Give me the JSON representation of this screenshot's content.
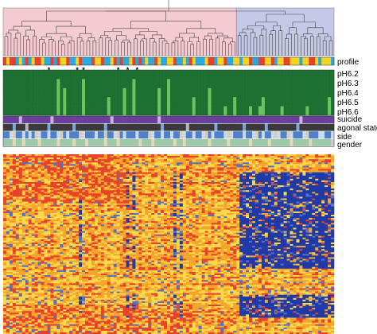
{
  "chart_data": {
    "type": "heatmap",
    "n_samples": 105,
    "dendrogram": {
      "clusters": [
        {
          "color": "#f4cbd3",
          "samples": [
            0,
            73
          ]
        },
        {
          "color": "#c5c8e6",
          "samples": [
            74,
            104
          ]
        }
      ]
    },
    "profile": {
      "label": "profile",
      "palette": {
        "r": "#e8402a",
        "y": "#f5d21f",
        "b": "#2aa9de",
        "o": "#f08a24"
      },
      "sequence": "ryrrbybrbyrrybbrbryyrbbyrbbbryyrbbyrbrbbyrbrbybbrybbyyrbbybrybbbyrrbyyrbbyybyyrbbrryyrbyyrryyybyyrrybyyyb"
    },
    "stars": {
      "symbol": "*",
      "samples": [
        14,
        23,
        25,
        36,
        39,
        42
      ]
    },
    "ph_tracks": {
      "labels": [
        "pH6.2",
        "pH6.3",
        "pH6.4",
        "pH6.5",
        "pH6.6"
      ],
      "colors": {
        "dark": "#1d7032",
        "light": "#6cc45e"
      },
      "light_rows": [
        0,
        0,
        0,
        0,
        0,
        0,
        0,
        0,
        0,
        0,
        0,
        0,
        0,
        0,
        0,
        0,
        0,
        4,
        0,
        3,
        0,
        0,
        0,
        0,
        0,
        4,
        0,
        0,
        0,
        0,
        0,
        0,
        0,
        2,
        0,
        0,
        0,
        0,
        3,
        0,
        0,
        4,
        0,
        0,
        0,
        0,
        0,
        0,
        0,
        3,
        0,
        0,
        4,
        0,
        0,
        0,
        0,
        0,
        0,
        0,
        2,
        0,
        0,
        0,
        0,
        3,
        0,
        0,
        0,
        0,
        1,
        0,
        0,
        2,
        0,
        0,
        0,
        0,
        1,
        0,
        0,
        1,
        2,
        0,
        0,
        0,
        0,
        0,
        1,
        0,
        0,
        0,
        0,
        0,
        0,
        0,
        1,
        0,
        0,
        0,
        0,
        0,
        0,
        2,
        0
      ]
    },
    "annotation_tracks": [
      {
        "label": "suicide",
        "palette": {
          "a": "#6b3fa0",
          "b": "#c9b3df"
        },
        "sequence": "aaaaabaaaaaaaaabaaaaaaaaaaaaaaaaaabaaaaaaaaaaaaaabaaaaaaaaaaaaaaaaaaaaaaaaaaaaaaaaaaaaaaaaaaaabaaaaaaaaaa"
      },
      {
        "label": "agonal state",
        "palette": {
          "a": "#3a3a3a",
          "b": "#7da9d8",
          "c": "#b7b7b7"
        },
        "sequence": "aaabaaacaaaaaabaaaaaaabaaaaaaaaabaaaaaaaaaaaaaaaaabaaaaaaacaaaaaaaabaaaaaaaabaaaaaabaaaaaaaaabaaaaaaaaaaa"
      },
      {
        "label": "side",
        "palette": {
          "a": "#4f80c8",
          "b": "#c9d9ef",
          "c": "#d7cfb5"
        },
        "sequence": "aabcaababacbaabaabcabaaacbaaabaacaabcabaaabaaacbaabaabaacbaabaabcabaaabcbaaabaabcabaabcbaacbaaabcaaabbaab"
      },
      {
        "label": "gender",
        "palette": {
          "a": "#9cc9a7",
          "b": "#e4d7b4"
        },
        "sequence": "aaabaabaaaabaaaaabaaaabaaabaaaaabaaabaaaaaabaaabaaaaaabaabaaaaaaabaaaaabaaaaaabaaaaabaaaaaabaaaaabaaaaaa"
      }
    ],
    "heatmap": {
      "n_genes": 110,
      "colorscale": [
        "#1f3aa8",
        "#5a6fc0",
        "#f7d94a",
        "#f4a52c",
        "#e7422b"
      ],
      "blue_columns": [
        24,
        39,
        41,
        54,
        56,
        75,
        76,
        77,
        78,
        79,
        80,
        81,
        82,
        83,
        84,
        85,
        86,
        87,
        88,
        89,
        90,
        91,
        92,
        93,
        94,
        95,
        96,
        97,
        98,
        99,
        100,
        101,
        102,
        103,
        104
      ]
    }
  }
}
